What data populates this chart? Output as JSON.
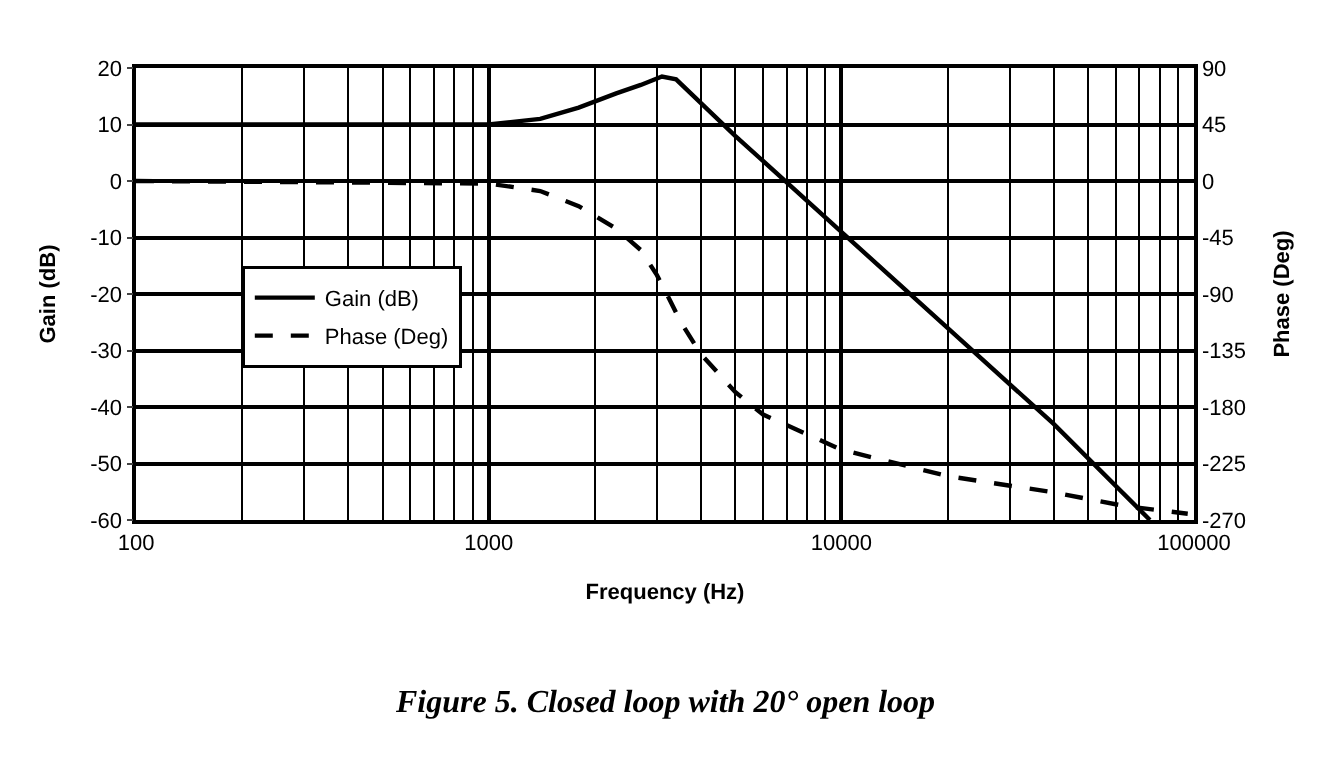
{
  "chart_data": {
    "type": "line",
    "xlabel": "Frequency (Hz)",
    "ylabel": "Gain (dB)",
    "y2label": "Phase (Deg)",
    "annotations": [
      "Figure 5. Closed loop with 20° open loop"
    ],
    "log": "x",
    "grid": true,
    "legend": "left",
    "xlim": [
      100,
      100000
    ],
    "xticks": [
      100,
      1000,
      10000,
      100000
    ],
    "ylim": [
      -60,
      20
    ],
    "yticks": [
      -60,
      -50,
      -40,
      -30,
      -20,
      -10,
      0,
      10,
      20
    ],
    "y2lim": [
      -270,
      90
    ],
    "y2ticks": [
      -270,
      -225,
      -180,
      -135,
      -90,
      -45,
      0,
      45,
      90
    ],
    "series": [
      {
        "name": "Gain (dB)",
        "color": "#000000",
        "line_style": "solid",
        "x": [
          100,
          1000,
          1400,
          1800,
          2300,
          2700,
          3100,
          3400,
          5000,
          10000,
          20000,
          40000,
          75000
        ],
        "values": [
          10,
          10,
          11,
          13,
          15.5,
          17,
          18.5,
          18,
          8,
          -9,
          -26,
          -43,
          -60
        ]
      },
      {
        "name": "Phase (Deg)",
        "color": "#000000",
        "line_style": "dashed",
        "axis": "y2",
        "x": [
          100,
          1000,
          1400,
          1800,
          2300,
          2700,
          3000,
          3200,
          3500,
          4000,
          5000,
          6000,
          10000,
          20000,
          40000,
          64000,
          96000
        ],
        "values": [
          0,
          -2,
          -8,
          -20,
          -38,
          -55,
          -75,
          -90,
          -112,
          -138,
          -168,
          -186,
          -214,
          -235,
          -248,
          -259,
          -265
        ]
      }
    ]
  }
}
